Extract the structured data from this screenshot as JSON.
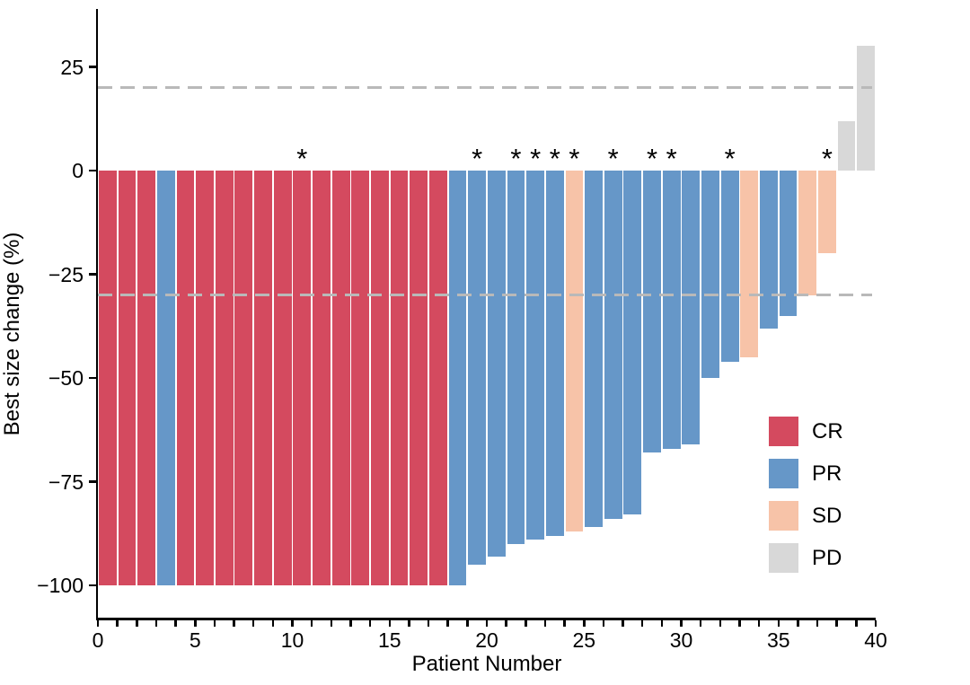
{
  "chart_data": {
    "type": "bar",
    "title": "",
    "xlabel": "Patient Number",
    "ylabel": "Best size change (%)",
    "xlim": [
      0,
      40
    ],
    "ylim": [
      -108,
      39
    ],
    "grid": false,
    "x_tick_step": 1,
    "x_tick_labels": [
      "0",
      "5",
      "10",
      "15",
      "20",
      "25",
      "30",
      "35",
      "40"
    ],
    "x_tick_label_values": [
      0,
      5,
      10,
      15,
      20,
      25,
      30,
      35,
      40
    ],
    "y_tick_labels": [
      "25",
      "0",
      "−25",
      "−50",
      "−75",
      "−100"
    ],
    "y_tick_values": [
      25,
      0,
      -25,
      -50,
      -75,
      -100
    ],
    "reference_lines": [
      {
        "value": 20,
        "style": "dashed",
        "color": "#b9b9b9"
      },
      {
        "value": -30,
        "style": "dashed",
        "color": "#b9b9b9"
      }
    ],
    "annotation_symbol": "*",
    "colors": {
      "CR": "#d44a5f",
      "PR": "#6697c8",
      "SD": "#f7c3a8",
      "PD": "#d8d8d8"
    },
    "legend": [
      {
        "label": "CR",
        "color": "#d44a5f"
      },
      {
        "label": "PR",
        "color": "#6697c8"
      },
      {
        "label": "SD",
        "color": "#f7c3a8"
      },
      {
        "label": "PD",
        "color": "#d8d8d8"
      }
    ],
    "legend_position": "inside-right",
    "bars": [
      {
        "patient": 1,
        "value": -100,
        "response": "CR",
        "asterisk": false
      },
      {
        "patient": 2,
        "value": -100,
        "response": "CR",
        "asterisk": false
      },
      {
        "patient": 3,
        "value": -100,
        "response": "CR",
        "asterisk": false
      },
      {
        "patient": 4,
        "value": -100,
        "response": "PR",
        "asterisk": false
      },
      {
        "patient": 5,
        "value": -100,
        "response": "CR",
        "asterisk": false
      },
      {
        "patient": 6,
        "value": -100,
        "response": "CR",
        "asterisk": false
      },
      {
        "patient": 7,
        "value": -100,
        "response": "CR",
        "asterisk": false
      },
      {
        "patient": 8,
        "value": -100,
        "response": "CR",
        "asterisk": false
      },
      {
        "patient": 9,
        "value": -100,
        "response": "CR",
        "asterisk": false
      },
      {
        "patient": 10,
        "value": -100,
        "response": "CR",
        "asterisk": false
      },
      {
        "patient": 11,
        "value": -100,
        "response": "CR",
        "asterisk": true
      },
      {
        "patient": 12,
        "value": -100,
        "response": "CR",
        "asterisk": false
      },
      {
        "patient": 13,
        "value": -100,
        "response": "CR",
        "asterisk": false
      },
      {
        "patient": 14,
        "value": -100,
        "response": "CR",
        "asterisk": false
      },
      {
        "patient": 15,
        "value": -100,
        "response": "CR",
        "asterisk": false
      },
      {
        "patient": 16,
        "value": -100,
        "response": "CR",
        "asterisk": false
      },
      {
        "patient": 17,
        "value": -100,
        "response": "CR",
        "asterisk": false
      },
      {
        "patient": 18,
        "value": -100,
        "response": "CR",
        "asterisk": false
      },
      {
        "patient": 19,
        "value": -100,
        "response": "PR",
        "asterisk": false
      },
      {
        "patient": 20,
        "value": -95,
        "response": "PR",
        "asterisk": true
      },
      {
        "patient": 21,
        "value": -93,
        "response": "PR",
        "asterisk": false
      },
      {
        "patient": 22,
        "value": -90,
        "response": "PR",
        "asterisk": true
      },
      {
        "patient": 23,
        "value": -89,
        "response": "PR",
        "asterisk": true
      },
      {
        "patient": 24,
        "value": -88,
        "response": "PR",
        "asterisk": true
      },
      {
        "patient": 25,
        "value": -87,
        "response": "SD",
        "asterisk": true
      },
      {
        "patient": 26,
        "value": -86,
        "response": "PR",
        "asterisk": false
      },
      {
        "patient": 27,
        "value": -84,
        "response": "PR",
        "asterisk": true
      },
      {
        "patient": 28,
        "value": -83,
        "response": "PR",
        "asterisk": false
      },
      {
        "patient": 29,
        "value": -68,
        "response": "PR",
        "asterisk": true
      },
      {
        "patient": 30,
        "value": -67,
        "response": "PR",
        "asterisk": true
      },
      {
        "patient": 31,
        "value": -66,
        "response": "PR",
        "asterisk": false
      },
      {
        "patient": 32,
        "value": -50,
        "response": "PR",
        "asterisk": false
      },
      {
        "patient": 33,
        "value": -46,
        "response": "PR",
        "asterisk": true
      },
      {
        "patient": 34,
        "value": -45,
        "response": "SD",
        "asterisk": false
      },
      {
        "patient": 35,
        "value": -38,
        "response": "PR",
        "asterisk": false
      },
      {
        "patient": 36,
        "value": -35,
        "response": "PR",
        "asterisk": false
      },
      {
        "patient": 37,
        "value": -30,
        "response": "SD",
        "asterisk": false
      },
      {
        "patient": 38,
        "value": -20,
        "response": "SD",
        "asterisk": true
      },
      {
        "patient": 39,
        "value": 12,
        "response": "PD",
        "asterisk": false
      },
      {
        "patient": 40,
        "value": 30,
        "response": "PD",
        "asterisk": false
      }
    ]
  }
}
